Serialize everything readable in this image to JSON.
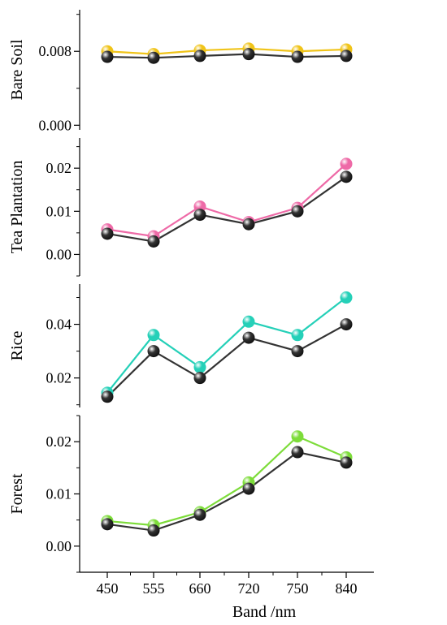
{
  "chart_data": [
    {
      "type": "line",
      "ylabel": "Bare Soil",
      "categories": [
        "450",
        "555",
        "660",
        "720",
        "750",
        "840"
      ],
      "ylim": [
        -0.0005,
        0.0125
      ],
      "yticks": [
        0.0,
        0.008
      ],
      "ytick_labels": [
        "0.000",
        "0.008"
      ],
      "series": [
        {
          "color": "#f0c419",
          "values": [
            0.008,
            0.0077,
            0.0081,
            0.0083,
            0.008,
            0.0082
          ]
        },
        {
          "color": "#333333",
          "values": [
            0.0074,
            0.0073,
            0.0075,
            0.0077,
            0.0074,
            0.0075
          ]
        }
      ]
    },
    {
      "type": "line",
      "ylabel": "Tea Plantation",
      "categories": [
        "450",
        "555",
        "660",
        "720",
        "750",
        "840"
      ],
      "ylim": [
        -0.005,
        0.027
      ],
      "yticks": [
        0.0,
        0.01,
        0.02
      ],
      "ytick_labels": [
        "0.00",
        "0.01",
        "0.02"
      ],
      "series": [
        {
          "color": "#ee6aa7",
          "values": [
            0.0058,
            0.0042,
            0.0111,
            0.0075,
            0.0108,
            0.021
          ]
        },
        {
          "color": "#333333",
          "values": [
            0.0048,
            0.003,
            0.0092,
            0.007,
            0.01,
            0.018
          ]
        }
      ]
    },
    {
      "type": "line",
      "ylabel": "Rice",
      "categories": [
        "450",
        "555",
        "660",
        "720",
        "750",
        "840"
      ],
      "ylim": [
        0.009,
        0.055
      ],
      "yticks": [
        0.02,
        0.04
      ],
      "ytick_labels": [
        "0.02",
        "0.04"
      ],
      "series": [
        {
          "color": "#25d0b8",
          "values": [
            0.0145,
            0.036,
            0.024,
            0.041,
            0.036,
            0.05
          ]
        },
        {
          "color": "#333333",
          "values": [
            0.013,
            0.03,
            0.02,
            0.035,
            0.03,
            0.04
          ]
        }
      ]
    },
    {
      "type": "line",
      "ylabel": "Forest",
      "categories": [
        "450",
        "555",
        "660",
        "720",
        "750",
        "840"
      ],
      "ylim": [
        -0.005,
        0.025
      ],
      "yticks": [
        0.0,
        0.01,
        0.02
      ],
      "ytick_labels": [
        "0.00",
        "0.01",
        "0.02"
      ],
      "xlabel": "Band /nm",
      "series": [
        {
          "color": "#7ddc3a",
          "values": [
            0.0048,
            0.004,
            0.0065,
            0.0122,
            0.021,
            0.017
          ]
        },
        {
          "color": "#333333",
          "values": [
            0.0042,
            0.003,
            0.006,
            0.011,
            0.018,
            0.016
          ]
        }
      ]
    }
  ]
}
